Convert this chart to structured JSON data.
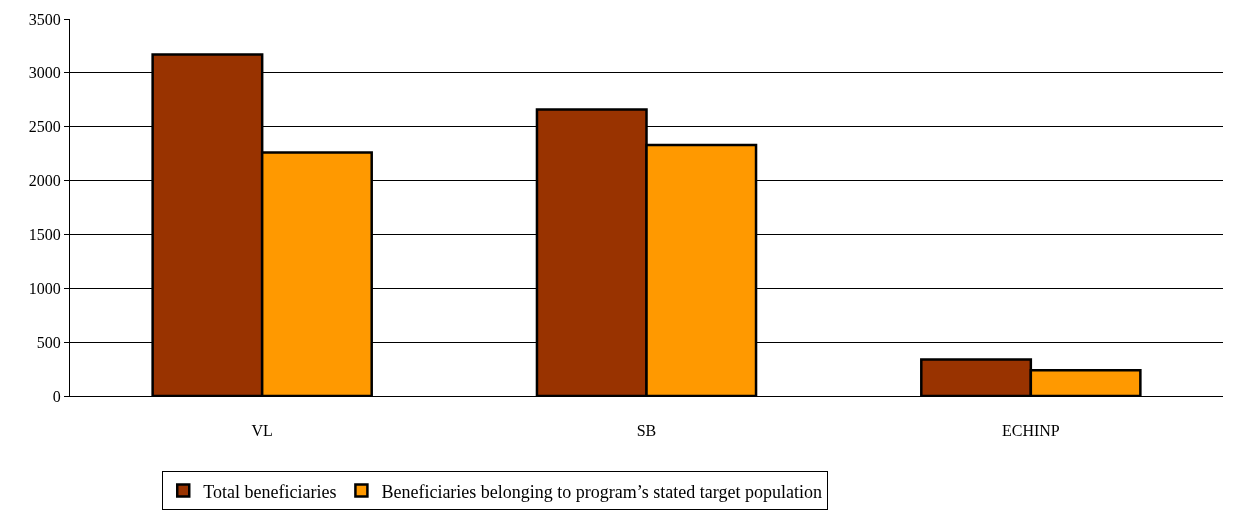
{
  "chart_data": {
    "type": "bar",
    "categories": [
      "VL",
      "SB",
      "ECHINP"
    ],
    "series": [
      {
        "name": "Total beneficiaries",
        "color": "#993300",
        "values": [
          3170,
          2660,
          340
        ]
      },
      {
        "name": "Beneficiaries belonging to program’s stated target population",
        "color": "#ff9900",
        "values": [
          2260,
          2330,
          240
        ]
      }
    ],
    "ylim": [
      0,
      3500
    ],
    "yticks": [
      0,
      500,
      1000,
      1500,
      2000,
      2500,
      3000,
      3500
    ],
    "grid": "y",
    "legend": "bottom"
  }
}
